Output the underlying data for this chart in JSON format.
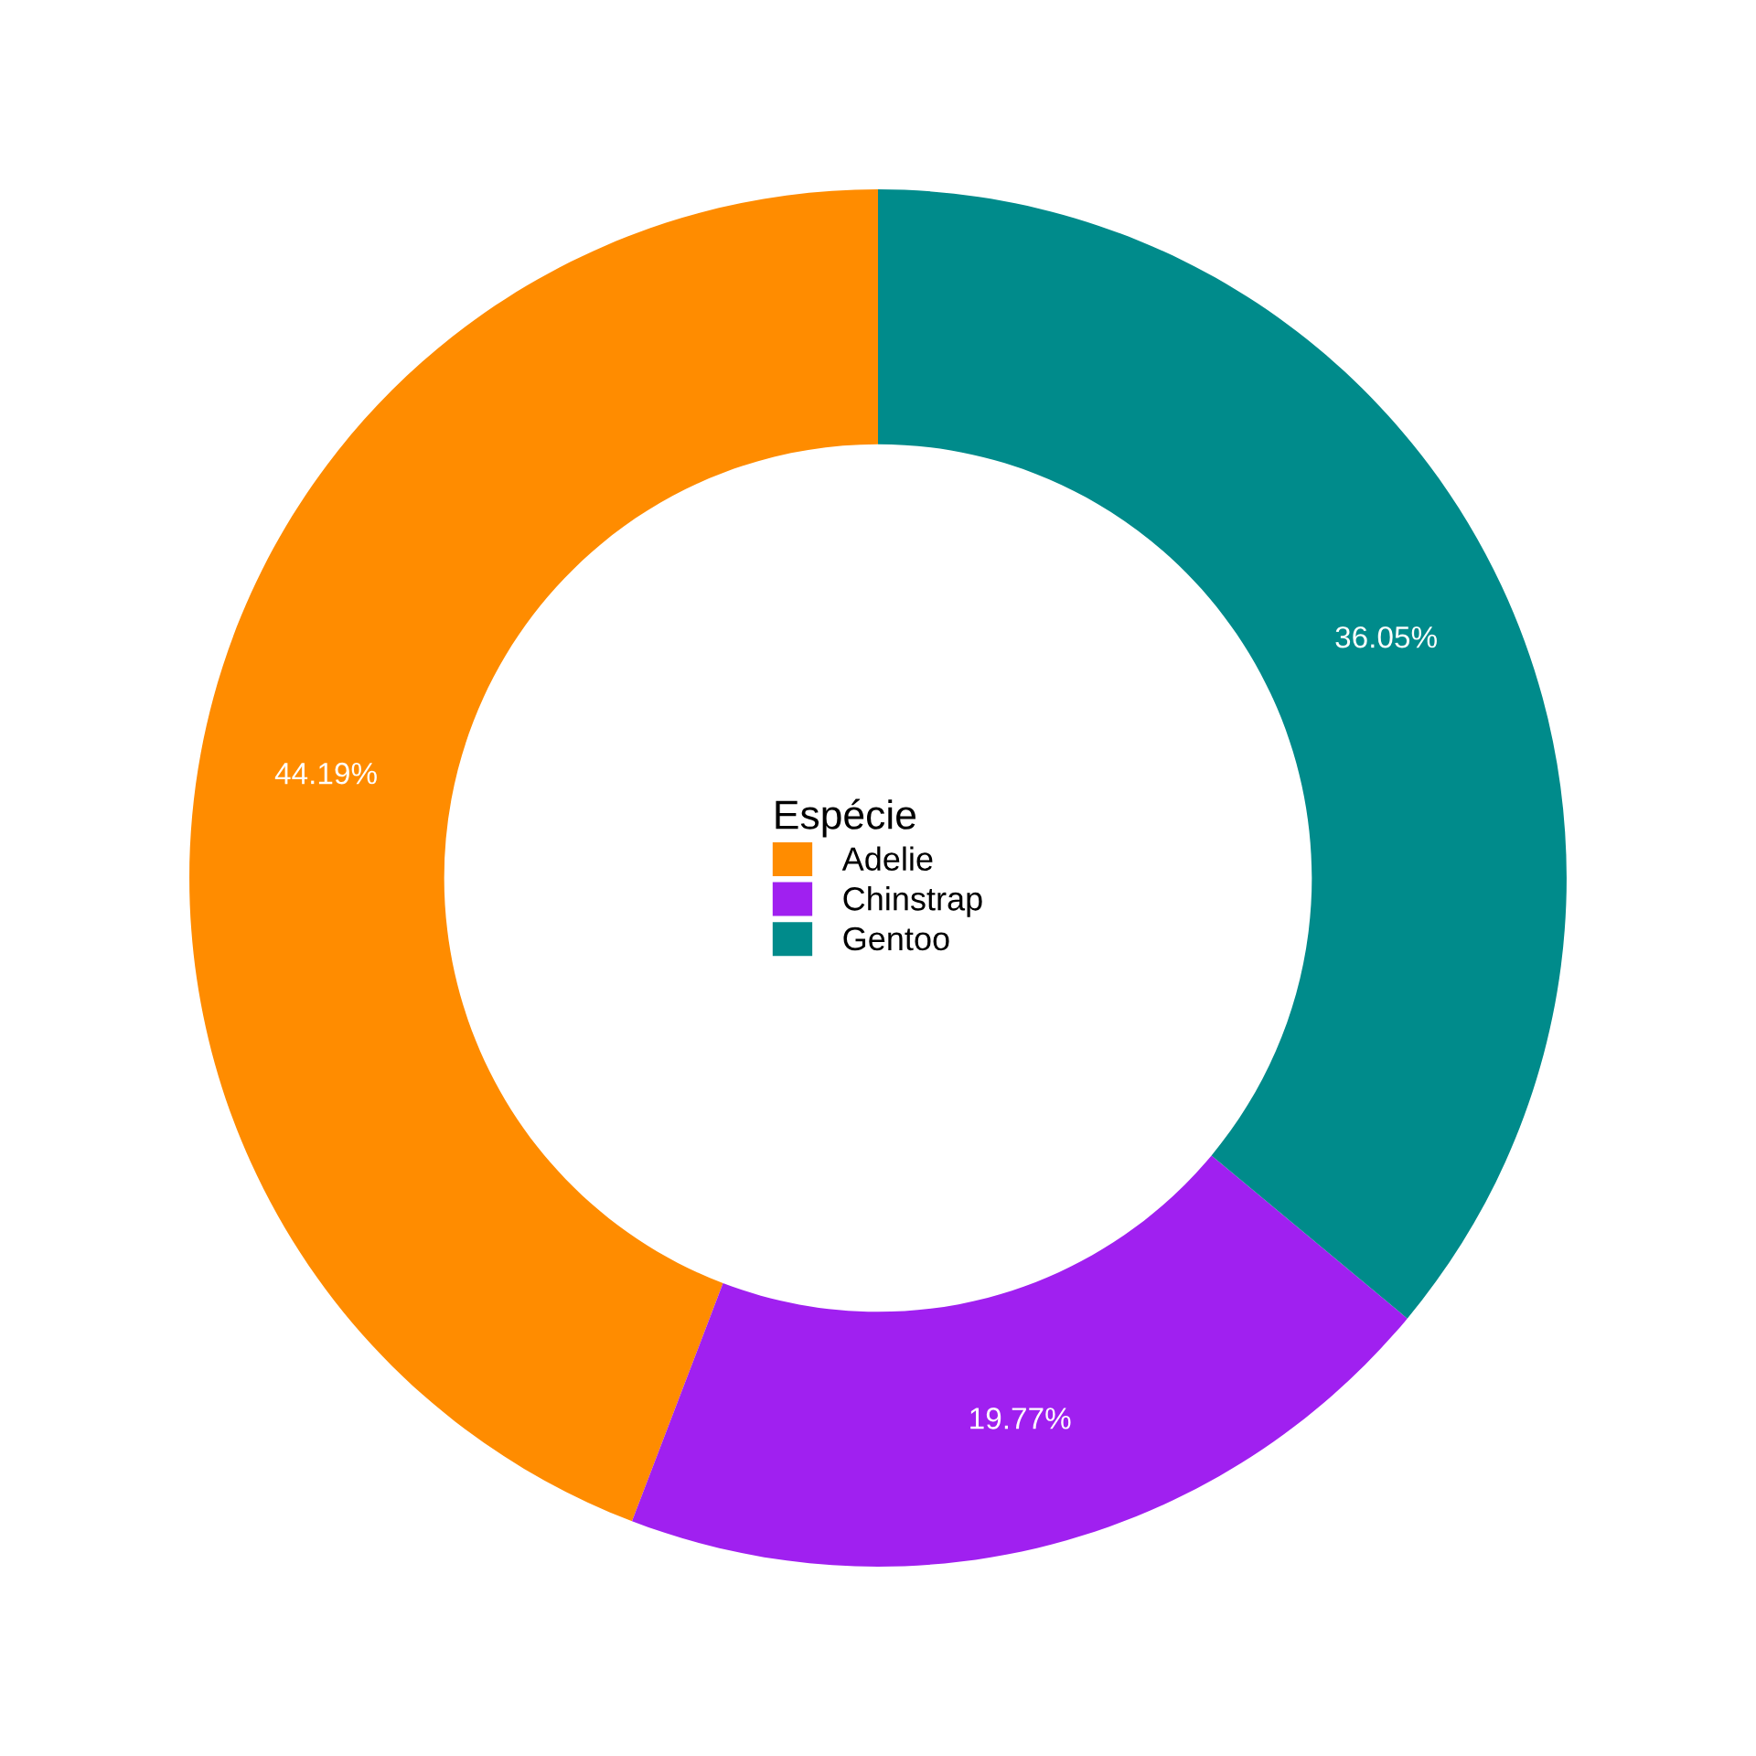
{
  "chart_data": {
    "type": "donut",
    "legend_title": "Espécie",
    "categories": [
      "Adelie",
      "Chinstrap",
      "Gentoo"
    ],
    "values": [
      44.19,
      19.77,
      36.05
    ],
    "colors": [
      "#ff8c00",
      "#a020f0",
      "#008b8b"
    ],
    "value_labels": [
      "44.19%",
      "19.77%",
      "36.05%"
    ],
    "legend": "center"
  }
}
